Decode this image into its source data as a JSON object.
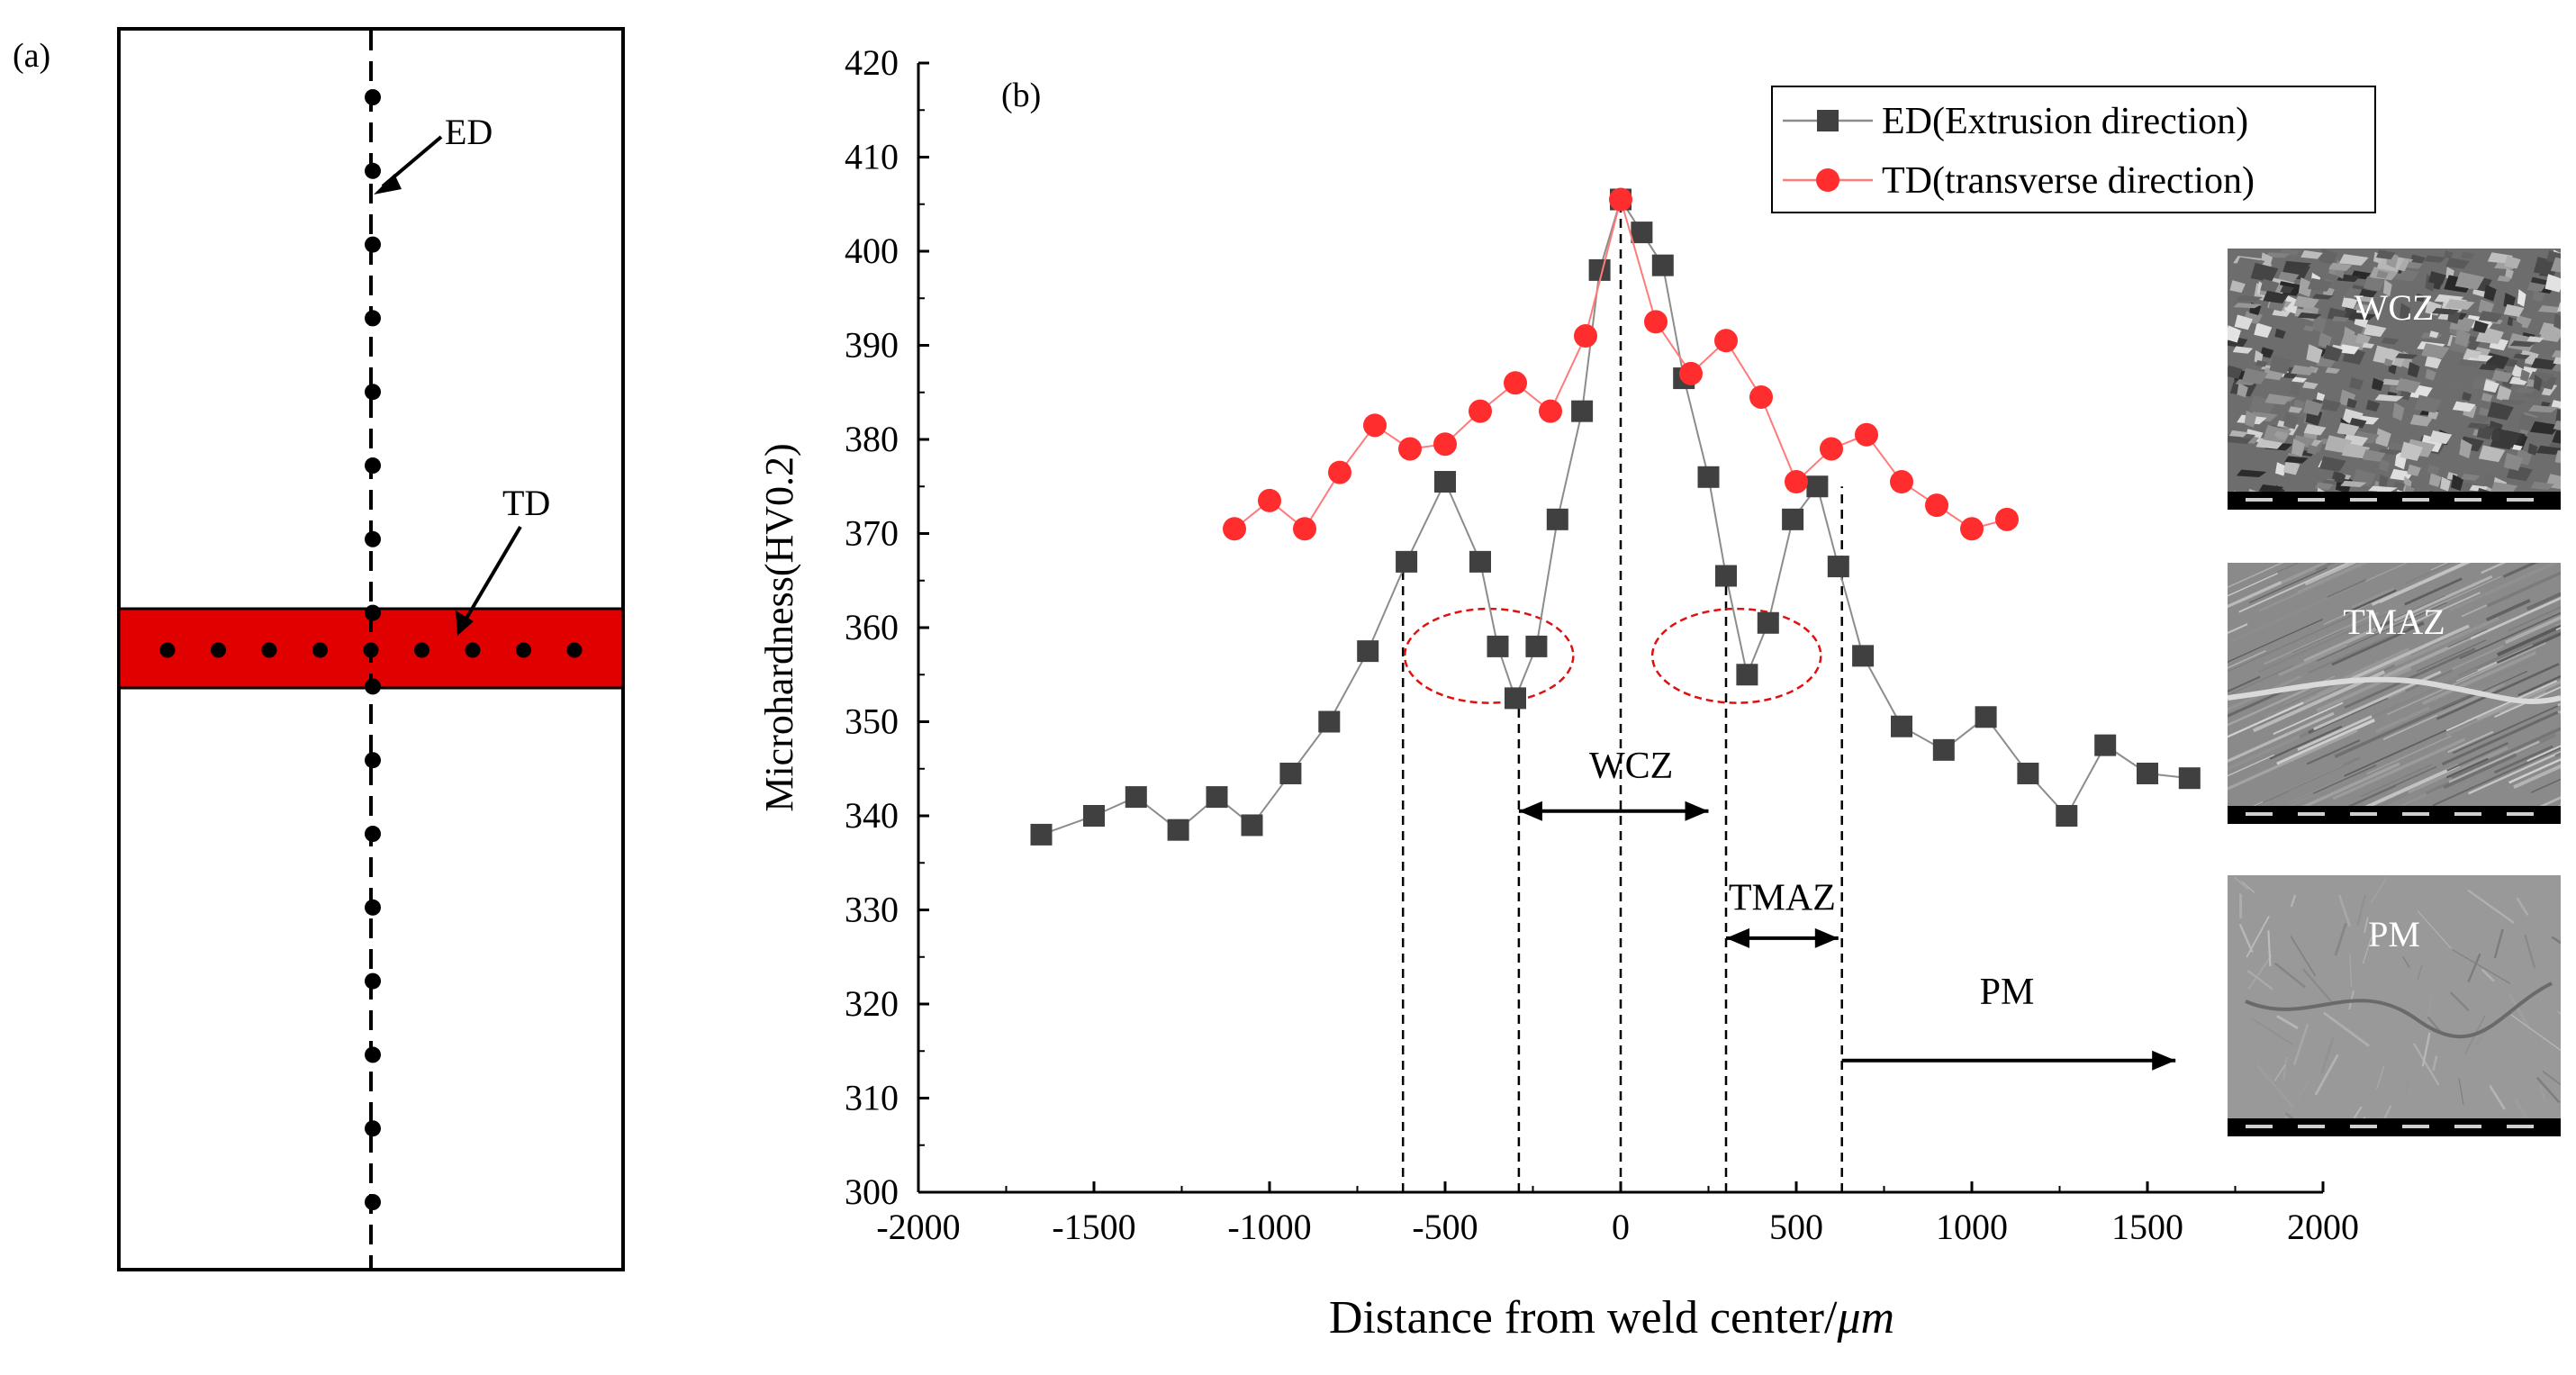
{
  "panel_a": {
    "label": "(a)",
    "ed_label": "ED",
    "td_label": "TD",
    "band_color": "#e00000",
    "ed_point_count": 16,
    "td_point_count": 9
  },
  "chart_data": {
    "type": "line",
    "panel_label": "(b)",
    "title": "",
    "xlabel": "Distance from weld center/",
    "xlabel_unit": "μm",
    "ylabel": "Microhardness(HV0.2)",
    "xlim": [
      -2000,
      2000
    ],
    "ylim": [
      300,
      420
    ],
    "x_ticks": [
      "-2000",
      "-1500",
      "-1000",
      "-500",
      "0",
      "500",
      "1000",
      "1500",
      "2000"
    ],
    "y_ticks": [
      "300",
      "310",
      "320",
      "330",
      "340",
      "350",
      "360",
      "370",
      "380",
      "390",
      "400",
      "410",
      "420"
    ],
    "grid": false,
    "legend_position": "top-right",
    "series": [
      {
        "name": "ED(Extrusion direction)",
        "marker": "square",
        "color": "#404040",
        "line_color": "#8c8c8c",
        "x": [
          -1650,
          -1500,
          -1380,
          -1260,
          -1150,
          -1050,
          -940,
          -830,
          -720,
          -610,
          -500,
          -400,
          -350,
          -300,
          -240,
          -180,
          -110,
          -60,
          0,
          60,
          120,
          180,
          250,
          300,
          360,
          420,
          490,
          560,
          620,
          690,
          800,
          920,
          1040,
          1160,
          1270,
          1380,
          1500,
          1620
        ],
        "values": [
          338,
          340,
          342,
          338.5,
          342,
          339,
          344.5,
          350,
          357.5,
          367,
          375.5,
          367,
          358,
          352.5,
          358,
          371.5,
          383,
          398,
          405.5,
          402,
          398.5,
          386.5,
          376,
          365.5,
          355,
          360.5,
          371.5,
          375,
          366.5,
          357,
          349.5,
          347,
          350.5,
          344.5,
          340,
          347.5,
          344.5,
          344
        ]
      },
      {
        "name": "TD(transverse direction)",
        "marker": "circle",
        "color": "#ff2d2d",
        "line_color": "#ff7a7a",
        "x": [
          -1100,
          -1000,
          -900,
          -800,
          -700,
          -600,
          -500,
          -400,
          -300,
          -200,
          -100,
          0,
          100,
          200,
          300,
          400,
          500,
          600,
          700,
          800,
          900,
          1000,
          1100
        ],
        "values": [
          370.5,
          373.5,
          370.5,
          376.5,
          381.5,
          379,
          379.5,
          383,
          386,
          383,
          391,
          405.5,
          392.5,
          387,
          390.5,
          384.5,
          375.5,
          379,
          380.5,
          375.5,
          373,
          370.5,
          371.5
        ]
      }
    ],
    "annotations": {
      "wcz": "WCZ",
      "tmaz": "TMAZ",
      "pm": "PM"
    },
    "dashed_verticals_x": [
      -620,
      -290,
      0,
      300,
      630
    ],
    "dashed_vertical_ranges": [
      [
        300,
        367
      ],
      [
        300,
        352.5
      ],
      [
        300,
        405.5
      ],
      [
        300,
        364.5
      ],
      [
        300,
        375
      ]
    ],
    "wcz_arrow": {
      "x1": -290,
      "x2": 250,
      "y": 340.5
    },
    "tmaz_arrow": {
      "x1": 300,
      "x2": 620,
      "y": 327
    },
    "pm_arrow": {
      "x1": 630,
      "x2": 1580,
      "y": 314
    },
    "wcz_text_at": {
      "x": 30,
      "y": 344
    },
    "tmaz_text_at": {
      "x": 460,
      "y": 330
    },
    "pm_text_at": {
      "x": 1100,
      "y": 320
    },
    "highlight_ellipses": [
      {
        "cx": -375,
        "cy": 357,
        "rx": 240,
        "ry": 5
      },
      {
        "cx": 330,
        "cy": 357,
        "rx": 240,
        "ry": 5
      }
    ],
    "ellipse_color": "#e01010"
  },
  "micrographs": [
    {
      "label": "WCZ",
      "texture": "grains"
    },
    {
      "label": "TMAZ",
      "texture": "lamellae"
    },
    {
      "label": "PM",
      "texture": "smooth"
    }
  ]
}
